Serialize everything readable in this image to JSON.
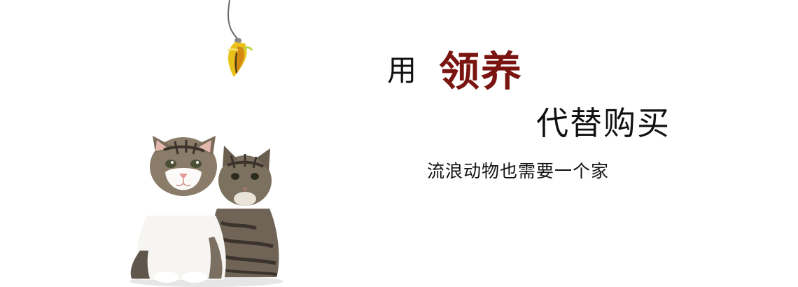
{
  "banner": {
    "headline": {
      "prefix": "用",
      "highlight": "领养"
    },
    "subline": "代替购买",
    "tagline": "流浪动物也需要一个家"
  },
  "colors": {
    "background": "#ffffff",
    "highlight": "#7a1410",
    "text": "#111111"
  },
  "icons": {
    "teaser": "feather-teaser-toy",
    "kittens": "two-tabby-kittens"
  }
}
